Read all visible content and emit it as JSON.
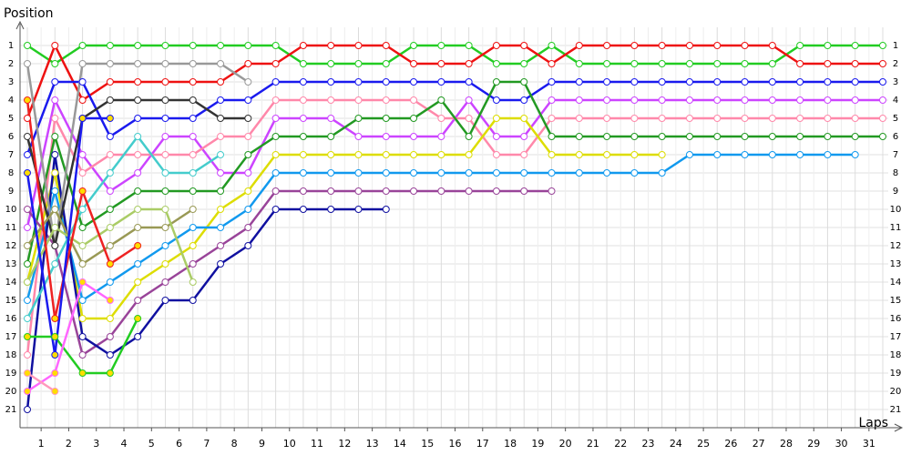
{
  "chart_data": {
    "type": "line",
    "y_axis_title": "Position",
    "x_axis_title": "Laps",
    "x": [
      0,
      1,
      2,
      3,
      4,
      5,
      6,
      7,
      8,
      9,
      10,
      11,
      12,
      13,
      14,
      15,
      16,
      17,
      18,
      19,
      20,
      21,
      22,
      23,
      24,
      25,
      26,
      27,
      28,
      29,
      30,
      31
    ],
    "xlim": [
      0,
      31
    ],
    "ylim": [
      0,
      22
    ],
    "y_inverted": true,
    "grid": true,
    "xticks": [
      {
        "value": 0.5,
        "label": "1"
      },
      {
        "value": 1.5,
        "label": "2"
      },
      {
        "value": 2.5,
        "label": "3"
      },
      {
        "value": 3.5,
        "label": "4"
      },
      {
        "value": 4.5,
        "label": "5"
      },
      {
        "value": 5.5,
        "label": "6"
      },
      {
        "value": 6.5,
        "label": "7"
      },
      {
        "value": 7.5,
        "label": "8"
      },
      {
        "value": 8.5,
        "label": "9"
      },
      {
        "value": 9.5,
        "label": "10"
      },
      {
        "value": 10.5,
        "label": "11"
      },
      {
        "value": 11.5,
        "label": "12"
      },
      {
        "value": 12.5,
        "label": "13"
      },
      {
        "value": 13.5,
        "label": "14"
      },
      {
        "value": 14.5,
        "label": "15"
      },
      {
        "value": 15.5,
        "label": "16"
      },
      {
        "value": 16.5,
        "label": "17"
      },
      {
        "value": 17.5,
        "label": "18"
      },
      {
        "value": 18.5,
        "label": "19"
      },
      {
        "value": 19.5,
        "label": "20"
      },
      {
        "value": 20.5,
        "label": "21"
      },
      {
        "value": 21.5,
        "label": "22"
      },
      {
        "value": 22.5,
        "label": "23"
      },
      {
        "value": 23.5,
        "label": "24"
      },
      {
        "value": 24.5,
        "label": "25"
      },
      {
        "value": 25.5,
        "label": "26"
      },
      {
        "value": 26.5,
        "label": "27"
      },
      {
        "value": 27.5,
        "label": "28"
      },
      {
        "value": 28.5,
        "label": "29"
      },
      {
        "value": 29.5,
        "label": "30"
      },
      {
        "value": 30.5,
        "label": "31"
      }
    ],
    "yticks": [
      1,
      2,
      3,
      4,
      5,
      6,
      7,
      8,
      9,
      10,
      11,
      12,
      13,
      14,
      15,
      16,
      17,
      18,
      19,
      20,
      21
    ],
    "series": [
      {
        "color": "#22cc22",
        "marker_color": "#ffffff",
        "values": [
          1,
          2,
          1,
          1,
          1,
          1,
          1,
          1,
          1,
          1,
          2,
          2,
          2,
          2,
          1,
          1,
          1,
          2,
          2,
          1,
          2,
          2,
          2,
          2,
          2,
          2,
          2,
          2,
          1,
          1,
          1,
          1
        ]
      },
      {
        "color": "#ee1111",
        "marker_color": "#ffffff",
        "values": [
          5,
          1,
          4,
          3,
          3,
          3,
          3,
          3,
          2,
          2,
          1,
          1,
          1,
          1,
          2,
          2,
          2,
          1,
          1,
          2,
          1,
          1,
          1,
          1,
          1,
          1,
          1,
          1,
          2,
          2,
          2,
          2
        ]
      },
      {
        "color": "#1a1aee",
        "marker_color": "#ffffff",
        "values": [
          7,
          3,
          3,
          6,
          5,
          5,
          5,
          4,
          4,
          3,
          3,
          3,
          3,
          3,
          3,
          3,
          3,
          4,
          4,
          3,
          3,
          3,
          3,
          3,
          3,
          3,
          3,
          3,
          3,
          3,
          3,
          3
        ]
      },
      {
        "color": "#cc44ff",
        "marker_color": "#ffffff",
        "values": [
          11,
          4,
          7,
          9,
          8,
          6,
          6,
          8,
          8,
          5,
          5,
          5,
          6,
          6,
          6,
          6,
          4,
          6,
          6,
          4,
          4,
          4,
          4,
          4,
          4,
          4,
          4,
          4,
          4,
          4,
          4,
          4
        ]
      },
      {
        "color": "#ff88aa",
        "marker_color": "#ffffff",
        "values": [
          18,
          5,
          8,
          7,
          7,
          7,
          7,
          6,
          6,
          4,
          4,
          4,
          4,
          4,
          4,
          5,
          5,
          7,
          7,
          5,
          5,
          5,
          5,
          5,
          5,
          5,
          5,
          5,
          5,
          5,
          5,
          5
        ]
      },
      {
        "color": "#229922",
        "marker_color": "#ffffff",
        "values": [
          13,
          6,
          11,
          10,
          9,
          9,
          9,
          9,
          7,
          6,
          6,
          6,
          5,
          5,
          5,
          4,
          6,
          3,
          3,
          6,
          6,
          6,
          6,
          6,
          6,
          6,
          6,
          6,
          6,
          6,
          6,
          6
        ]
      },
      {
        "color": "#dddd00",
        "marker_color": "#ffffff",
        "values": [
          14,
          8,
          16,
          16,
          14,
          13,
          12,
          10,
          9,
          7,
          7,
          7,
          7,
          7,
          7,
          7,
          7,
          5,
          5,
          7,
          7,
          7,
          7,
          7,
          null,
          null,
          null,
          null,
          null,
          null,
          null,
          null
        ]
      },
      {
        "color": "#1199ee",
        "marker_color": "#ffffff",
        "values": [
          15,
          9,
          15,
          14,
          13,
          12,
          11,
          11,
          10,
          8,
          8,
          8,
          8,
          8,
          8,
          8,
          8,
          8,
          8,
          8,
          8,
          8,
          8,
          8,
          7,
          7,
          7,
          7,
          7,
          7,
          7,
          null
        ]
      },
      {
        "color": "#994499",
        "marker_color": "#ffffff",
        "values": [
          10,
          12,
          18,
          17,
          15,
          14,
          13,
          12,
          11,
          9,
          9,
          9,
          9,
          9,
          9,
          9,
          9,
          9,
          9,
          9,
          null,
          null,
          null,
          null,
          null,
          null,
          null,
          null,
          null,
          null,
          null,
          null
        ]
      },
      {
        "color": "#1010a0",
        "marker_color": "#ffffff",
        "values": [
          21,
          7,
          17,
          18,
          17,
          15,
          15,
          13,
          12,
          10,
          10,
          10,
          10,
          10,
          null,
          null,
          null,
          null,
          null,
          null,
          null,
          null,
          null,
          null,
          null,
          null,
          null,
          null,
          null,
          null,
          null,
          null
        ]
      },
      {
        "color": "#999999",
        "marker_color": "#ffffff",
        "values": [
          2,
          12,
          2,
          2,
          2,
          2,
          2,
          2,
          3,
          null,
          null,
          null,
          null,
          null,
          null,
          null,
          null,
          null,
          null,
          null,
          null,
          null,
          null,
          null,
          null,
          null,
          null,
          null,
          null,
          null,
          null,
          null
        ]
      },
      {
        "color": "#333333",
        "marker_color": "#ffffff",
        "values": [
          6,
          12,
          5,
          4,
          4,
          4,
          4,
          5,
          5,
          null,
          null,
          null,
          null,
          null,
          null,
          null,
          null,
          null,
          null,
          null,
          null,
          null,
          null,
          null,
          null,
          null,
          null,
          null,
          null,
          null,
          null,
          null
        ]
      },
      {
        "color": "#44cccc",
        "marker_color": "#ffffff",
        "values": [
          16,
          13,
          10,
          8,
          6,
          8,
          8,
          7,
          null,
          null,
          null,
          null,
          null,
          null,
          null,
          null,
          null,
          null,
          null,
          null,
          null,
          null,
          null,
          null,
          null,
          null,
          null,
          null,
          null,
          null,
          null,
          null
        ]
      },
      {
        "color": "#999955",
        "marker_color": "#ffffff",
        "values": [
          12,
          10,
          13,
          12,
          11,
          11,
          10,
          null,
          null,
          null,
          null,
          null,
          null,
          null,
          null,
          null,
          null,
          null,
          null,
          null,
          null,
          null,
          null,
          null,
          null,
          null,
          null,
          null,
          null,
          null,
          null,
          null
        ]
      },
      {
        "color": "#aacc66",
        "marker_color": "#ffffff",
        "values": [
          14,
          11,
          12,
          11,
          10,
          10,
          14,
          null,
          null,
          null,
          null,
          null,
          null,
          null,
          null,
          null,
          null,
          null,
          null,
          null,
          null,
          null,
          null,
          null,
          null,
          null,
          null,
          null,
          null,
          null,
          null,
          null
        ]
      },
      {
        "color": "#ee2222",
        "marker_color": "#ffdd00",
        "values": [
          4,
          16,
          9,
          13,
          12,
          null,
          null,
          null,
          null,
          null,
          null,
          null,
          null,
          null,
          null,
          null,
          null,
          null,
          null,
          null,
          null,
          null,
          null,
          null,
          null,
          null,
          null,
          null,
          null,
          null,
          null,
          null
        ]
      },
      {
        "color": "#22cc22",
        "marker_color": "#ffdd00",
        "values": [
          17,
          17,
          19,
          19,
          16,
          null,
          null,
          null,
          null,
          null,
          null,
          null,
          null,
          null,
          null,
          null,
          null,
          null,
          null,
          null,
          null,
          null,
          null,
          null,
          null,
          null,
          null,
          null,
          null,
          null,
          null,
          null
        ]
      },
      {
        "color": "#1a1aee",
        "marker_color": "#ffdd00",
        "values": [
          8,
          18,
          5,
          5,
          null,
          null,
          null,
          null,
          null,
          null,
          null,
          null,
          null,
          null,
          null,
          null,
          null,
          null,
          null,
          null,
          null,
          null,
          null,
          null,
          null,
          null,
          null,
          null,
          null,
          null,
          null,
          null
        ]
      },
      {
        "color": "#ff66ff",
        "marker_color": "#ffdd00",
        "values": [
          20,
          19,
          14,
          15,
          null,
          null,
          null,
          null,
          null,
          null,
          null,
          null,
          null,
          null,
          null,
          null,
          null,
          null,
          null,
          null,
          null,
          null,
          null,
          null,
          null,
          null,
          null,
          null,
          null,
          null,
          null,
          null
        ]
      },
      {
        "color": "#ff99bb",
        "marker_color": "#ffdd00",
        "values": [
          19,
          20,
          null,
          null,
          null,
          null,
          null,
          null,
          null,
          null,
          null,
          null,
          null,
          null,
          null,
          null,
          null,
          null,
          null,
          null,
          null,
          null,
          null,
          null,
          null,
          null,
          null,
          null,
          null,
          null,
          null,
          null
        ]
      }
    ]
  }
}
